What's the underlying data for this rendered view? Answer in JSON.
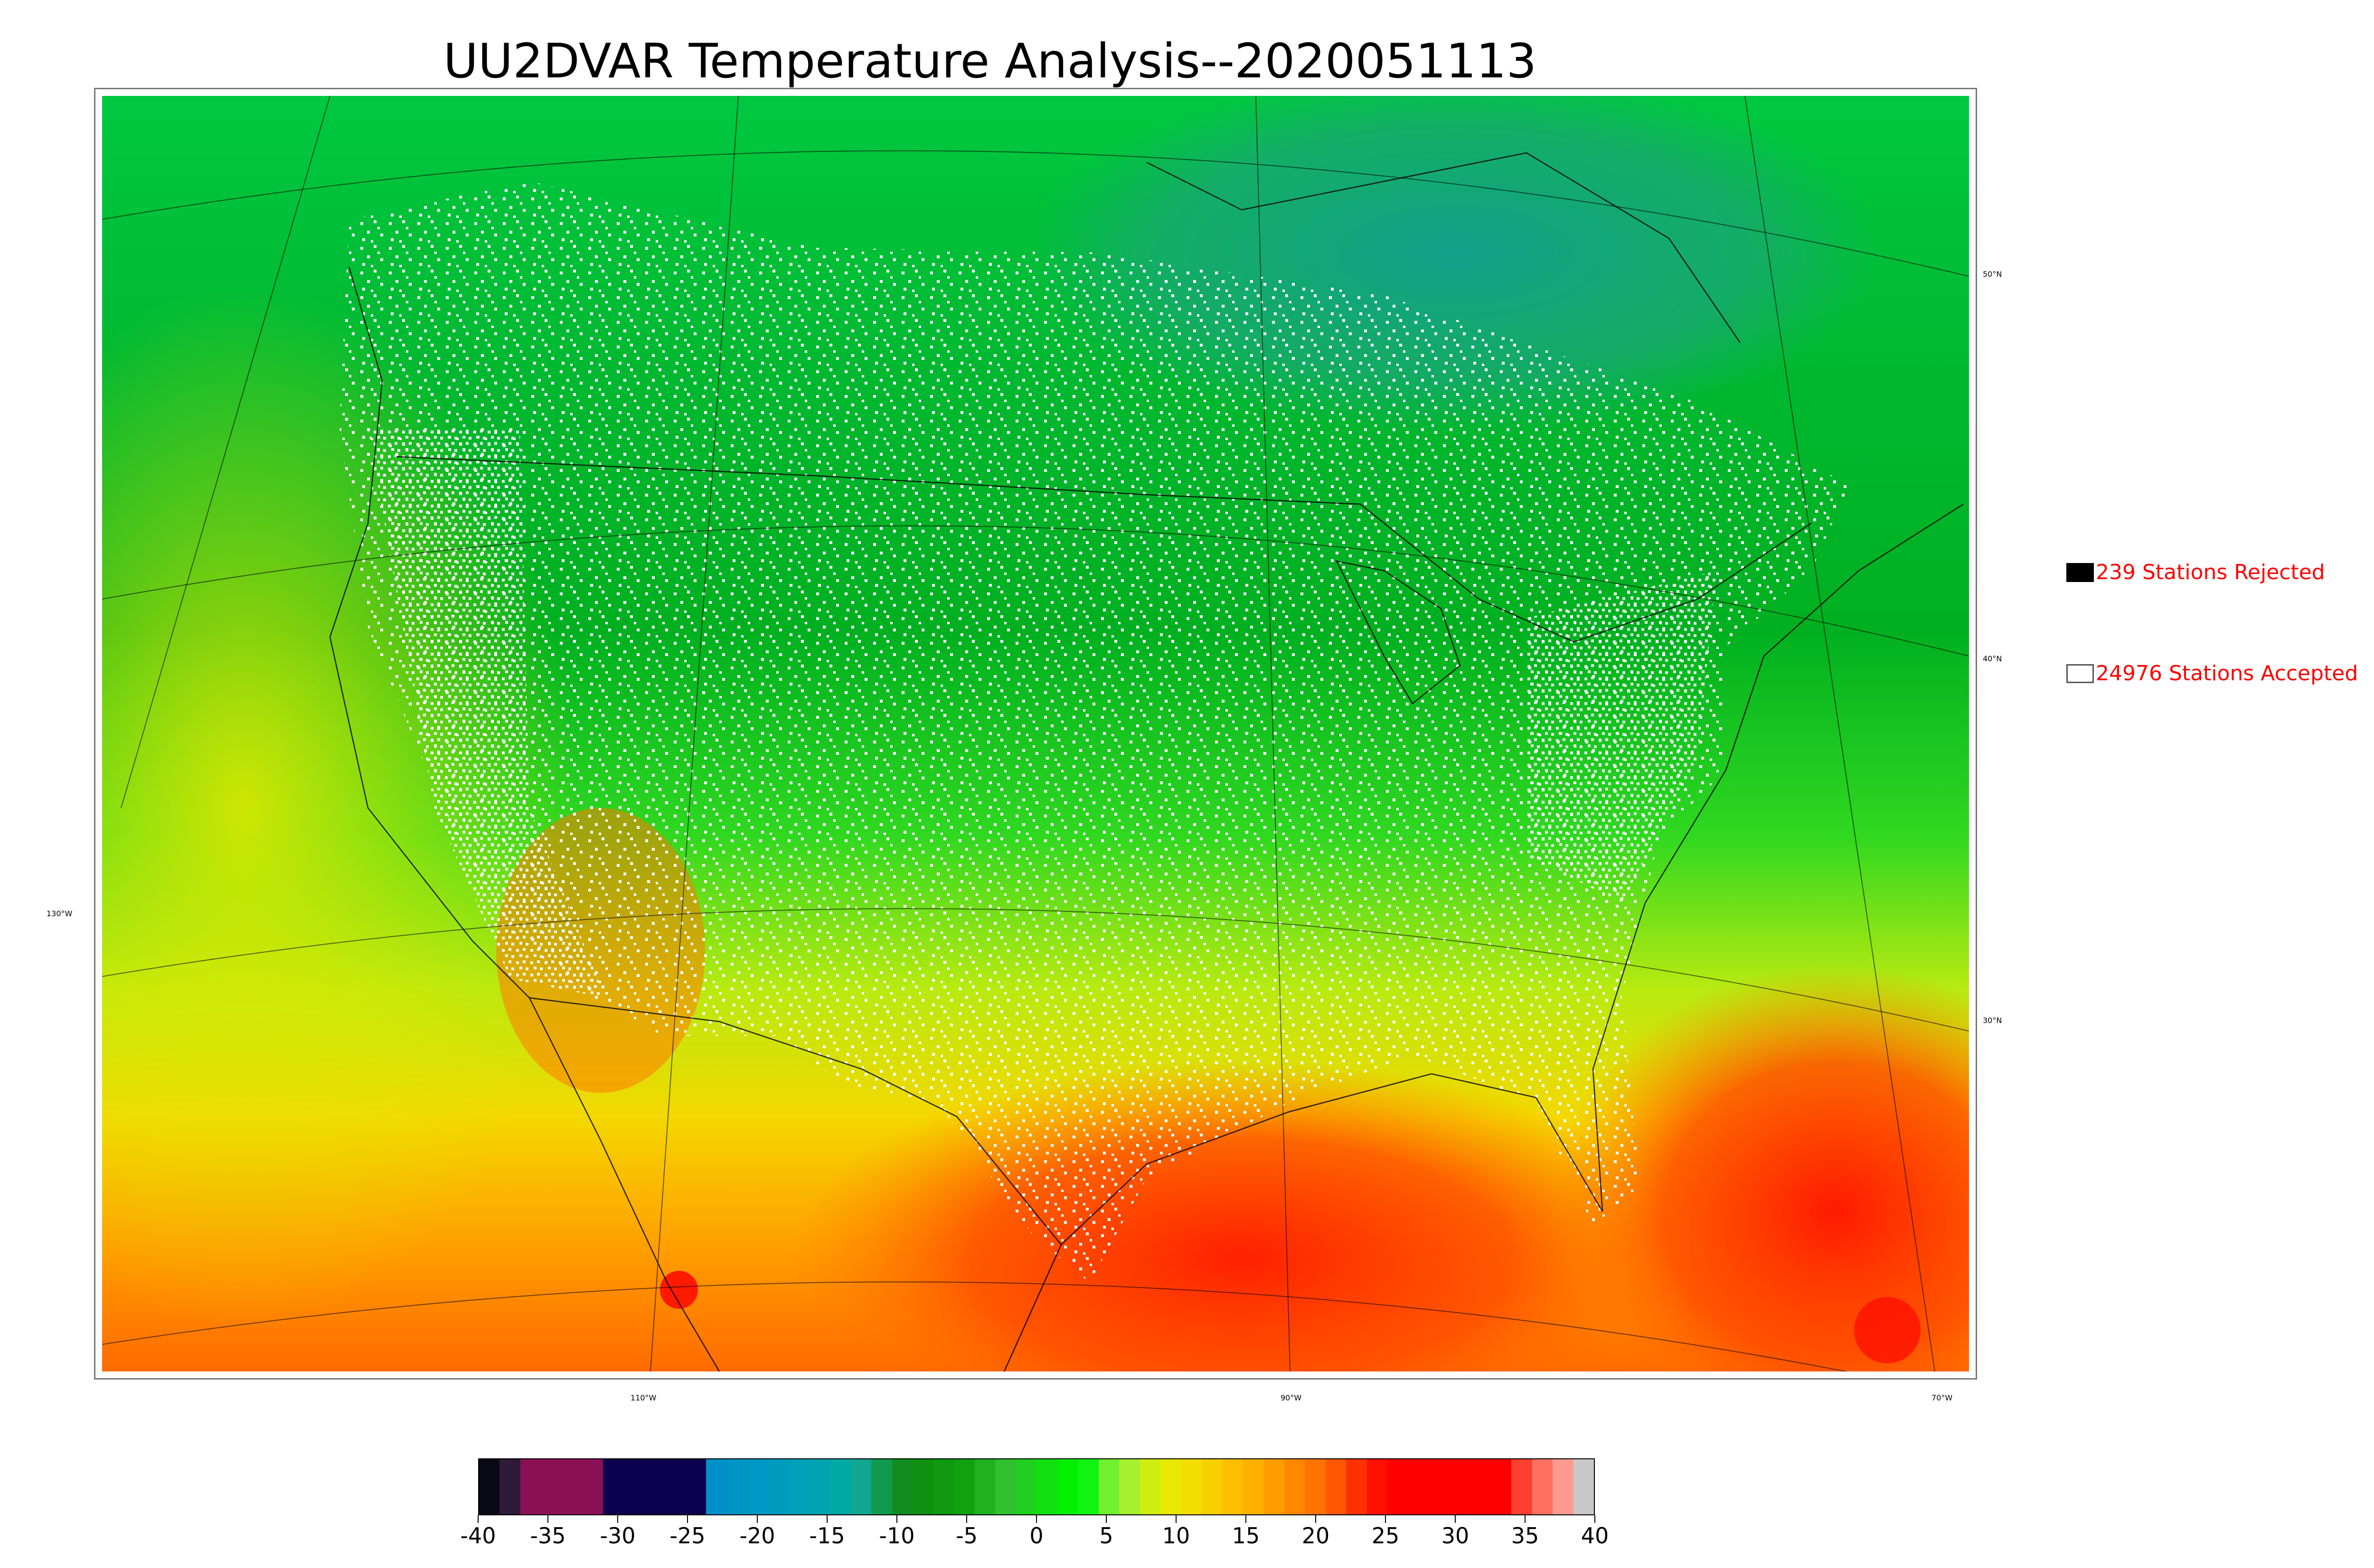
{
  "title": "UU2DVAR Temperature Analysis--2020051113",
  "legend": {
    "rejected": {
      "label": "239 Stations Rejected",
      "box_color": "#000000"
    },
    "accepted": {
      "label": "24976 Stations Accepted",
      "box_color": "#ffffff"
    }
  },
  "graticule": {
    "latitudes": [
      {
        "label": "50°N"
      },
      {
        "label": "40°N"
      },
      {
        "label": "30°N"
      }
    ],
    "longitudes": [
      {
        "label": "130°W"
      },
      {
        "label": "110°W"
      },
      {
        "label": "90°W"
      },
      {
        "label": "70°W"
      }
    ]
  },
  "colorbar": {
    "unit_range": [
      -40,
      40
    ],
    "tick_labels": [
      "-40",
      "-35",
      "-30",
      "-25",
      "-20",
      "-15",
      "-10",
      "-5",
      "0",
      "5",
      "10",
      "15",
      "20",
      "25",
      "30",
      "35",
      "40"
    ],
    "segments": [
      "#0a0a14",
      "#2f1a3a",
      "#8a0f55",
      "#8a0f55",
      "#8a0f55",
      "#8a0f55",
      "#0c0050",
      "#0c0050",
      "#0c0050",
      "#0c0050",
      "#0c0050",
      "#0090c8",
      "#0094c6",
      "#0098c4",
      "#009cbe",
      "#00a0b8",
      "#00a4b0",
      "#00a8a6",
      "#10a890",
      "#109a50",
      "#108c20",
      "#109010",
      "#109810",
      "#10a010",
      "#20b020",
      "#30c030",
      "#20d020",
      "#10e010",
      "#00f000",
      "#10f510",
      "#70f030",
      "#a8ef30",
      "#d0ee10",
      "#e8e800",
      "#f4dd00",
      "#f8d000",
      "#fcc000",
      "#ffb000",
      "#ff9c00",
      "#ff8800",
      "#ff7400",
      "#ff5800",
      "#ff3000",
      "#ff1000",
      "#ff0000",
      "#ff0000",
      "#ff0000",
      "#ff0000",
      "#ff0000",
      "#ff0000",
      "#ff4030",
      "#ff7060",
      "#ff9a90",
      "#c8c8c8"
    ]
  }
}
